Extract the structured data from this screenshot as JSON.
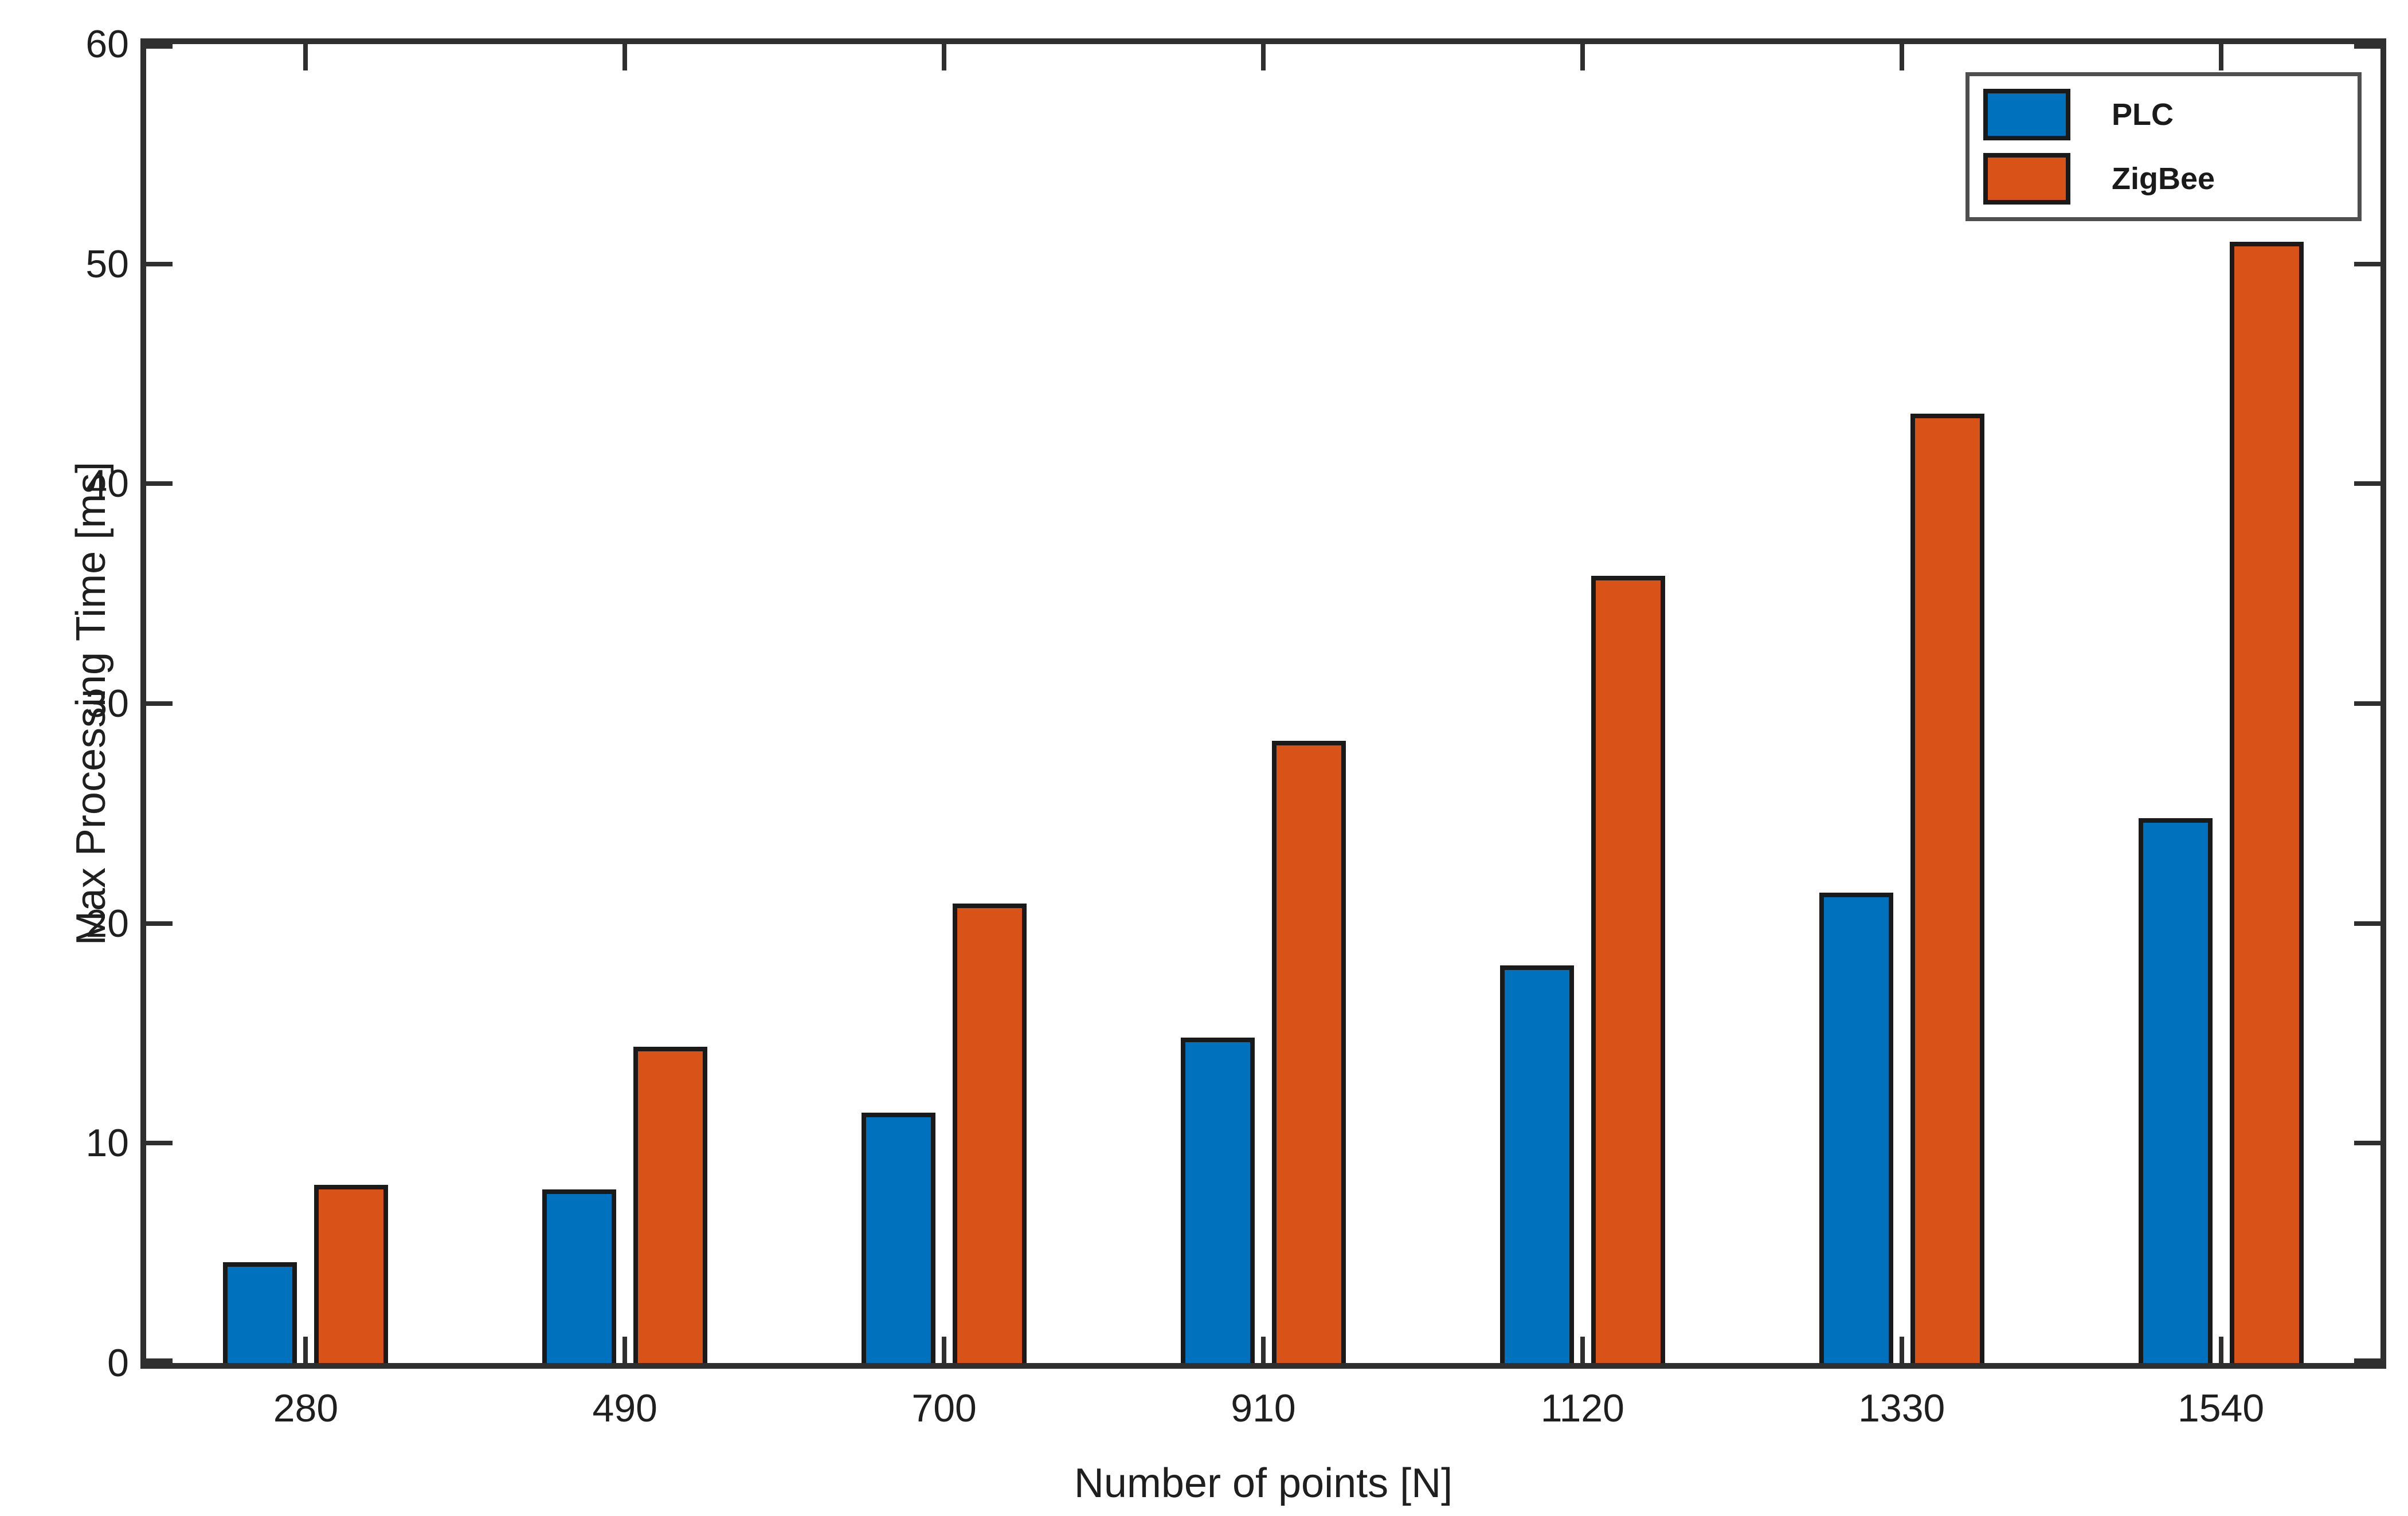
{
  "figure": {
    "background": "#ffffff",
    "axis_color": "#2f2f2f",
    "text_color": "#1f1f1f",
    "bar_edge_color": "#1a1a1a"
  },
  "chart_data": {
    "type": "bar",
    "title": "",
    "xlabel": "Number of points [N]",
    "ylabel": "Max Processing Time [ms]",
    "categories": [
      "280",
      "490",
      "700",
      "910",
      "1120",
      "1330",
      "1540"
    ],
    "series": [
      {
        "name": "PLC",
        "color": "#0072bd",
        "values": [
          4.6,
          7.9,
          11.4,
          14.8,
          18.1,
          21.4,
          24.8
        ]
      },
      {
        "name": "ZigBee",
        "color": "#d95319",
        "values": [
          8.1,
          14.4,
          20.9,
          28.3,
          35.8,
          43.2,
          51.0
        ]
      }
    ],
    "ylim": [
      0,
      60
    ],
    "yticks": [
      0,
      10,
      20,
      30,
      40,
      50,
      60
    ],
    "grid": false,
    "box": true,
    "tick_direction": "in",
    "legend_position": "top-right",
    "legend_labels": [
      "PLC",
      "ZigBee"
    ]
  }
}
